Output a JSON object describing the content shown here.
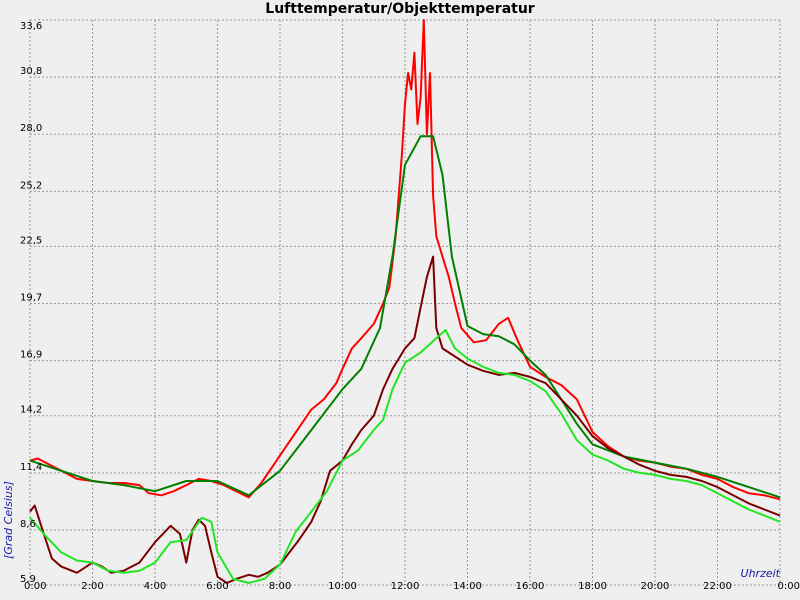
{
  "chart_data": {
    "type": "line",
    "title": "Lufttemperatur/Objekttemperatur",
    "xlabel": "Uhrzeit",
    "ylabel": "[Grad Celsius]",
    "x_unit": "hours",
    "xlim": [
      0,
      24
    ],
    "ylim": [
      5.9,
      33.6
    ],
    "grid": true,
    "x_tick_labels": [
      "0:00",
      "2:00",
      "4:00",
      "6:00",
      "8:00",
      "10:00",
      "12:00",
      "14:00",
      "16:00",
      "18:00",
      "20:00",
      "22:00",
      "0:00"
    ],
    "x_tick_values": [
      0,
      2,
      4,
      6,
      8,
      10,
      12,
      14,
      16,
      18,
      20,
      22,
      24
    ],
    "y_tick_labels": [
      "5,9",
      "8,6",
      "11,4",
      "14,2",
      "16,9",
      "19,7",
      "22,5",
      "25,2",
      "28,0",
      "30,8",
      "33,6"
    ],
    "y_tick_values": [
      5.9,
      8.6,
      11.4,
      14.2,
      16.9,
      19.7,
      22.5,
      25.2,
      28.0,
      30.8,
      33.6
    ],
    "series": [
      {
        "color": "#ff0000",
        "x": [
          0,
          0.25,
          0.5,
          1,
          1.5,
          2,
          2.5,
          3,
          3.5,
          3.8,
          4.2,
          4.6,
          5,
          5.4,
          5.8,
          6.2,
          6.6,
          7,
          7.4,
          7.8,
          8.2,
          8.6,
          9,
          9.4,
          9.8,
          10,
          10.3,
          10.6,
          11,
          11.3,
          11.5,
          11.7,
          11.9,
          12,
          12.1,
          12.2,
          12.3,
          12.4,
          12.5,
          12.6,
          12.7,
          12.8,
          12.9,
          13.0,
          13.2,
          13.4,
          13.6,
          13.8,
          14.2,
          14.6,
          15.0,
          15.3,
          15.6,
          16.0,
          16.5,
          17,
          17.5,
          18,
          18.5,
          19,
          19.5,
          20,
          20.5,
          21,
          21.5,
          22,
          22.5,
          23,
          23.5,
          24
        ],
        "y": [
          12.0,
          12.1,
          11.9,
          11.5,
          11.1,
          11.0,
          10.9,
          10.9,
          10.8,
          10.4,
          10.3,
          10.5,
          10.8,
          11.1,
          11.0,
          10.8,
          10.5,
          10.2,
          10.9,
          11.8,
          12.7,
          13.6,
          14.5,
          15.0,
          15.8,
          16.5,
          17.5,
          18.0,
          18.7,
          19.7,
          20.5,
          23.0,
          27.0,
          29.5,
          31.0,
          30.2,
          32.0,
          28.5,
          29.8,
          33.6,
          28.0,
          31.0,
          25.0,
          23.0,
          22.0,
          21.0,
          19.7,
          18.5,
          17.8,
          17.9,
          18.7,
          19.0,
          17.9,
          16.6,
          16.1,
          15.7,
          15.0,
          13.4,
          12.7,
          12.2,
          12.0,
          11.9,
          11.7,
          11.6,
          11.3,
          11.1,
          10.7,
          10.4,
          10.3,
          10.1
        ]
      },
      {
        "color": "#008000",
        "x": [
          0,
          1,
          2,
          3,
          4,
          5,
          6,
          7,
          8,
          9,
          10,
          10.6,
          11.2,
          11.6,
          12,
          12.5,
          12.9,
          13.2,
          13.5,
          14,
          14.5,
          15,
          15.5,
          16,
          16.5,
          17,
          17.5,
          18,
          19,
          20,
          21,
          22,
          23,
          24
        ],
        "y": [
          12.0,
          11.5,
          11.0,
          10.8,
          10.5,
          11.0,
          11.0,
          10.3,
          11.5,
          13.5,
          15.5,
          16.5,
          18.5,
          22.0,
          26.5,
          27.9,
          27.9,
          26.0,
          22.0,
          18.6,
          18.2,
          18.1,
          17.7,
          16.9,
          16.2,
          15.0,
          13.8,
          12.8,
          12.2,
          11.9,
          11.6,
          11.2,
          10.7,
          10.2
        ]
      },
      {
        "color": "#7a0000",
        "x": [
          0,
          0.15,
          0.4,
          0.7,
          1,
          1.5,
          2,
          2.3,
          2.6,
          3,
          3.5,
          4,
          4.5,
          4.8,
          5,
          5.2,
          5.4,
          5.6,
          5.8,
          6,
          6.3,
          6.6,
          7,
          7.3,
          7.6,
          8,
          8.3,
          8.6,
          9,
          9.3,
          9.6,
          10,
          10.3,
          10.6,
          11,
          11.3,
          11.6,
          11.8,
          12,
          12.3,
          12.5,
          12.7,
          12.9,
          13,
          13.2,
          13.5,
          14,
          14.5,
          15,
          15.5,
          16,
          16.5,
          17,
          17.5,
          18,
          18.5,
          19,
          19.5,
          20,
          20.5,
          21,
          21.5,
          22,
          22.5,
          23,
          23.5,
          24
        ],
        "y": [
          9.5,
          9.8,
          8.6,
          7.2,
          6.8,
          6.5,
          7.0,
          6.8,
          6.5,
          6.6,
          7.0,
          8.0,
          8.8,
          8.4,
          7.0,
          8.6,
          9.1,
          8.8,
          7.5,
          6.3,
          6.0,
          6.2,
          6.4,
          6.3,
          6.5,
          6.9,
          7.5,
          8.1,
          9.0,
          10.0,
          11.5,
          12.0,
          12.8,
          13.5,
          14.2,
          15.5,
          16.5,
          17.0,
          17.5,
          18.0,
          19.5,
          21.0,
          22.0,
          18.5,
          17.5,
          17.2,
          16.7,
          16.4,
          16.2,
          16.3,
          16.1,
          15.8,
          15.0,
          14.2,
          13.2,
          12.6,
          12.2,
          11.8,
          11.5,
          11.3,
          11.2,
          11.0,
          10.7,
          10.3,
          9.9,
          9.6,
          9.3
        ]
      },
      {
        "color": "#22e622",
        "x": [
          0,
          0.5,
          1,
          1.5,
          2,
          2.5,
          3,
          3.5,
          4,
          4.5,
          5,
          5.5,
          5.8,
          6,
          6.5,
          7,
          7.5,
          8,
          8.5,
          9,
          9.5,
          10,
          10.5,
          11,
          11.3,
          11.6,
          12,
          12.5,
          13,
          13.3,
          13.6,
          14,
          14.5,
          15,
          15.5,
          16,
          16.5,
          17,
          17.5,
          18,
          18.5,
          19,
          19.5,
          20,
          20.5,
          21,
          21.5,
          22,
          22.5,
          23,
          23.5,
          24
        ],
        "y": [
          9.2,
          8.3,
          7.5,
          7.1,
          7.0,
          6.6,
          6.5,
          6.6,
          7.0,
          8.0,
          8.1,
          9.2,
          9.0,
          7.5,
          6.2,
          6.0,
          6.2,
          6.9,
          8.5,
          9.5,
          10.5,
          12.0,
          12.5,
          13.5,
          14.0,
          15.5,
          16.8,
          17.3,
          18.0,
          18.4,
          17.5,
          17.0,
          16.6,
          16.3,
          16.2,
          15.9,
          15.4,
          14.3,
          13.0,
          12.3,
          12.0,
          11.6,
          11.4,
          11.3,
          11.1,
          11.0,
          10.8,
          10.4,
          10.0,
          9.6,
          9.3,
          9.0
        ]
      }
    ]
  }
}
